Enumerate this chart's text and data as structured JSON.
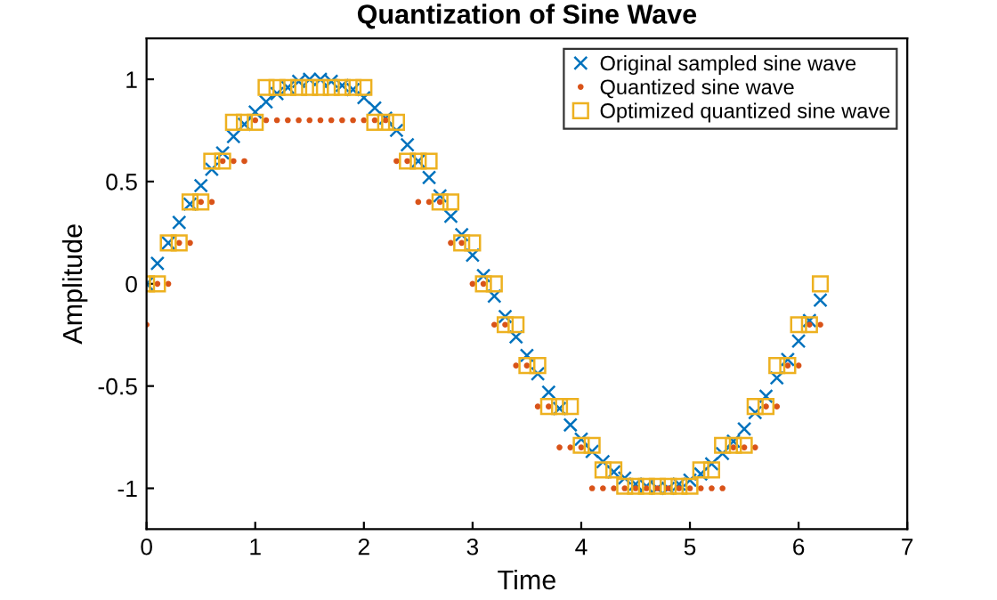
{
  "chart_data": {
    "type": "scatter",
    "title": "Quantization of Sine Wave",
    "xlabel": "Time",
    "ylabel": "Amplitude",
    "x": [
      0,
      0.1,
      0.2,
      0.3,
      0.4,
      0.5,
      0.6,
      0.7,
      0.8,
      0.9,
      1.0,
      1.1,
      1.2,
      1.3,
      1.4,
      1.5,
      1.6,
      1.7,
      1.8,
      1.9,
      2.0,
      2.1,
      2.2,
      2.3,
      2.4,
      2.5,
      2.6,
      2.7,
      2.8,
      2.9,
      3.0,
      3.1,
      3.2,
      3.3,
      3.4,
      3.5,
      3.6,
      3.7,
      3.8,
      3.9,
      4.0,
      4.1,
      4.2,
      4.3,
      4.4,
      4.5,
      4.6,
      4.7,
      4.8,
      4.9,
      5.0,
      5.1,
      5.2,
      5.3,
      5.4,
      5.5,
      5.6,
      5.7,
      5.8,
      5.9,
      6.0,
      6.1,
      6.2
    ],
    "series": [
      {
        "name": "Original sampled sine wave",
        "color": "#0072bd",
        "marker": "cross",
        "values": [
          0.0,
          0.1,
          0.2,
          0.3,
          0.39,
          0.48,
          0.56,
          0.64,
          0.72,
          0.78,
          0.84,
          0.89,
          0.93,
          0.96,
          0.99,
          1.0,
          1.0,
          0.99,
          0.97,
          0.95,
          0.91,
          0.86,
          0.81,
          0.75,
          0.68,
          0.6,
          0.52,
          0.43,
          0.33,
          0.24,
          0.14,
          0.04,
          -0.06,
          -0.16,
          -0.26,
          -0.35,
          -0.44,
          -0.53,
          -0.61,
          -0.69,
          -0.76,
          -0.82,
          -0.87,
          -0.92,
          -0.95,
          -0.98,
          -0.99,
          -1.0,
          -1.0,
          -0.98,
          -0.96,
          -0.93,
          -0.88,
          -0.83,
          -0.77,
          -0.71,
          -0.63,
          -0.55,
          -0.46,
          -0.37,
          -0.28,
          -0.18,
          -0.08
        ]
      },
      {
        "name": "Quantized sine wave",
        "color": "#d95319",
        "marker": "circle",
        "values": [
          -0.2,
          0,
          0,
          0.2,
          0.2,
          0.4,
          0.4,
          0.6,
          0.6,
          0.6,
          0.8,
          0.8,
          0.8,
          0.8,
          0.8,
          0.8,
          0.8,
          0.8,
          0.8,
          0.8,
          0.8,
          0.8,
          0.8,
          0.6,
          0.6,
          0.4,
          0.4,
          0.4,
          0.2,
          0.2,
          0,
          0,
          -0.2,
          -0.2,
          -0.4,
          -0.4,
          -0.6,
          -0.6,
          -0.8,
          -0.8,
          -0.8,
          -1.0,
          -1.0,
          -1.0,
          -1.0,
          -1.0,
          -1.0,
          -1.0,
          -1.0,
          -1.0,
          -1.0,
          -1.0,
          -1.0,
          -1.0,
          -0.8,
          -0.8,
          -0.8,
          -0.6,
          -0.6,
          -0.4,
          -0.4,
          -0.2,
          -0.2
        ]
      },
      {
        "name": "Optimized quantized sine wave",
        "color": "#edb120",
        "marker": "square",
        "values": [
          0,
          0,
          0.2,
          0.2,
          0.4,
          0.4,
          0.6,
          0.6,
          0.79,
          0.79,
          0.79,
          0.96,
          0.96,
          0.96,
          0.96,
          0.96,
          0.96,
          0.96,
          0.96,
          0.96,
          0.96,
          0.79,
          0.79,
          0.79,
          0.6,
          0.6,
          0.6,
          0.4,
          0.4,
          0.2,
          0.2,
          0,
          0,
          -0.2,
          -0.2,
          -0.4,
          -0.4,
          -0.6,
          -0.6,
          -0.6,
          -0.79,
          -0.79,
          -0.91,
          -0.91,
          -0.99,
          -0.99,
          -0.99,
          -0.99,
          -0.99,
          -0.99,
          -0.99,
          -0.91,
          -0.91,
          -0.79,
          -0.79,
          -0.79,
          -0.6,
          -0.6,
          -0.4,
          -0.4,
          -0.2,
          -0.2,
          0
        ]
      }
    ],
    "xlim": [
      0,
      7
    ],
    "xticks": [
      0,
      1,
      2,
      3,
      4,
      5,
      6,
      7
    ],
    "ylim": [
      -1.2,
      1.2
    ],
    "yticks": [
      -1,
      -0.5,
      0,
      0.5,
      1
    ],
    "legend": "top right",
    "grid": false
  }
}
